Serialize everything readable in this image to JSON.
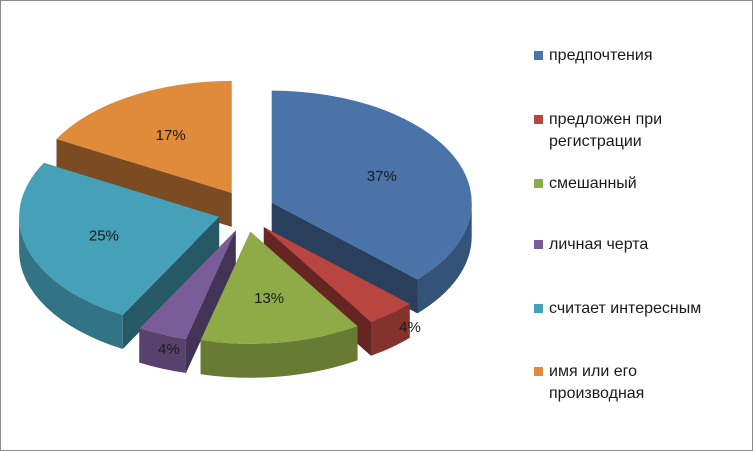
{
  "chart_data": {
    "type": "pie",
    "categories": [
      "предпочтения",
      "предложен при регистрации",
      "смешанный",
      "личная черта",
      "считает интересным",
      "имя или его производная"
    ],
    "values": [
      37,
      4,
      13,
      4,
      25,
      17
    ],
    "data_labels": [
      "37%",
      "4%",
      "13%",
      "4%",
      "25%",
      "17%"
    ],
    "colors": [
      "#4a73a8",
      "#b84540",
      "#8fab47",
      "#7a5c98",
      "#45a0b8",
      "#e08a3c"
    ],
    "style": "3d-exploded",
    "legend_position": "right"
  }
}
